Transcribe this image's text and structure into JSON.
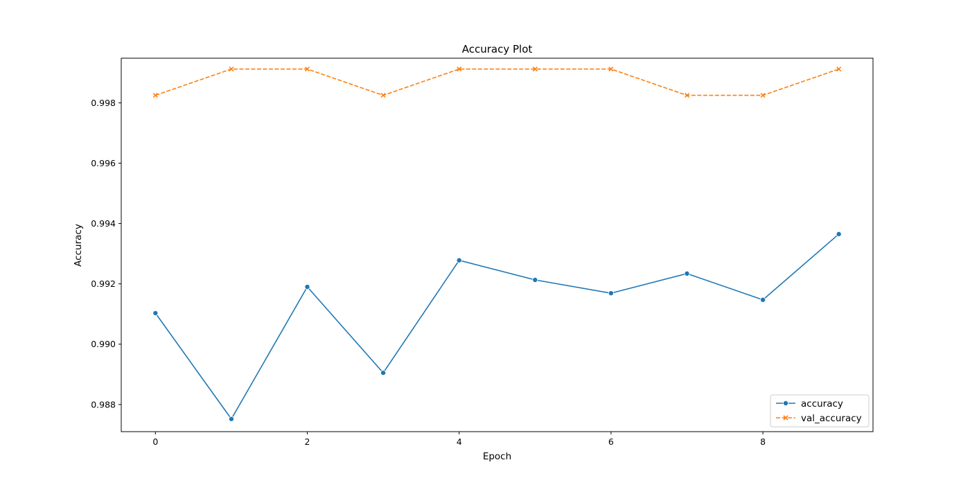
{
  "chart_data": {
    "type": "line",
    "title": "Accuracy Plot",
    "xlabel": "Epoch",
    "ylabel": "Accuracy",
    "x": [
      0,
      1,
      2,
      3,
      4,
      5,
      6,
      7,
      8,
      9
    ],
    "xlim": [
      -0.45,
      9.45
    ],
    "ylim": [
      0.9871,
      0.99948
    ],
    "xticks": [
      0,
      2,
      4,
      6,
      8
    ],
    "xtick_labels": [
      "0",
      "2",
      "4",
      "6",
      "8"
    ],
    "yticks": [
      0.988,
      0.99,
      0.992,
      0.994,
      0.996,
      0.998
    ],
    "ytick_labels": [
      "0.988",
      "0.990",
      "0.992",
      "0.994",
      "0.996",
      "0.998"
    ],
    "grid": false,
    "legend_position": "lower-right",
    "series": [
      {
        "name": "accuracy",
        "values": [
          0.99103,
          0.98752,
          0.9919,
          0.98905,
          0.99278,
          0.99213,
          0.99169,
          0.99234,
          0.99147,
          0.99365
        ],
        "color": "#1f77b4",
        "line_style": "solid",
        "marker": "circle"
      },
      {
        "name": "val_accuracy",
        "values": [
          0.99825,
          0.99912,
          0.99912,
          0.99825,
          0.99912,
          0.99912,
          0.99912,
          0.99825,
          0.99825,
          0.99912
        ],
        "color": "#ff7f0e",
        "line_style": "dashed",
        "marker": "x"
      }
    ]
  }
}
